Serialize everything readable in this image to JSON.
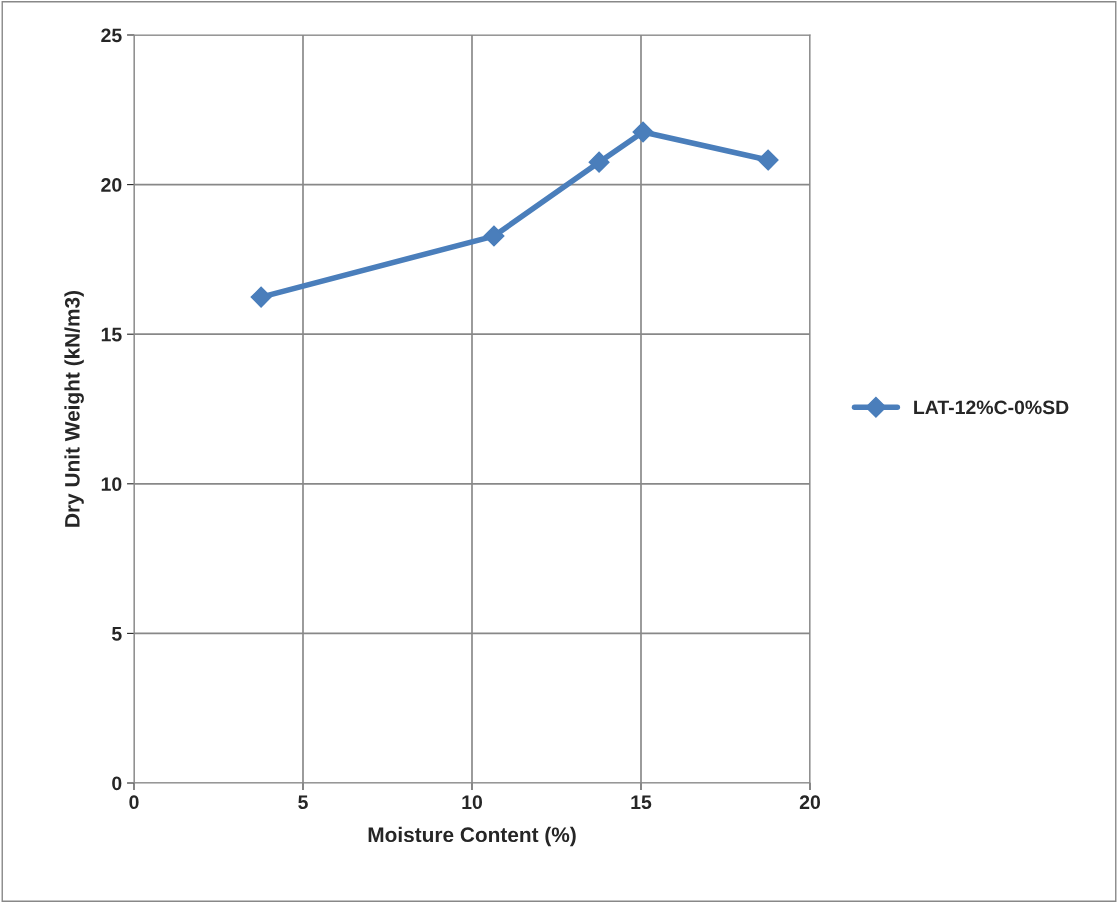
{
  "chart_data": {
    "type": "line",
    "xlabel": "Moisture Content (%)",
    "ylabel": "Dry Unit Weight (kN/m3)",
    "series": [
      {
        "name": "LAT-12%C-0%SD",
        "color": "#4a7ebb",
        "x": [
          3.76,
          10.65,
          13.76,
          15.06,
          18.76
        ],
        "values": [
          16.24,
          18.28,
          20.75,
          21.76,
          20.82
        ]
      }
    ],
    "xlim": [
      0,
      20
    ],
    "xticks": [
      0,
      5,
      10,
      15,
      20
    ],
    "ylim": [
      0,
      25
    ],
    "yticks": [
      0,
      5,
      10,
      15,
      20,
      25
    ],
    "grid": true,
    "legend": "right",
    "marker": "diamond",
    "line_style": "solid"
  }
}
